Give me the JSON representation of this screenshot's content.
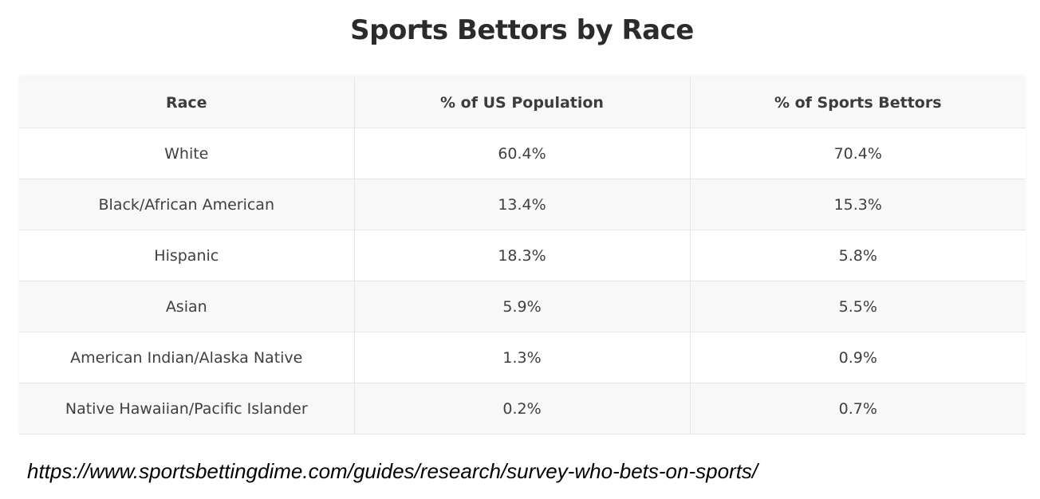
{
  "title": "Sports Bettors by Race",
  "table": {
    "headers": [
      "Race",
      "% of US Population",
      "% of Sports Bettors"
    ],
    "rows": [
      [
        "White",
        "60.4%",
        "70.4%"
      ],
      [
        "Black/African American",
        "13.4%",
        "15.3%"
      ],
      [
        "Hispanic",
        "18.3%",
        "5.8%"
      ],
      [
        "Asian",
        "5.9%",
        "5.5%"
      ],
      [
        "American Indian/Alaska Native",
        "1.3%",
        "0.9%"
      ],
      [
        "Native Hawaiian/Pacific Islander",
        "0.2%",
        "0.7%"
      ]
    ]
  },
  "source_url": "https://www.sportsbettingdime.com/guides/research/survey-who-bets-on-sports/"
}
